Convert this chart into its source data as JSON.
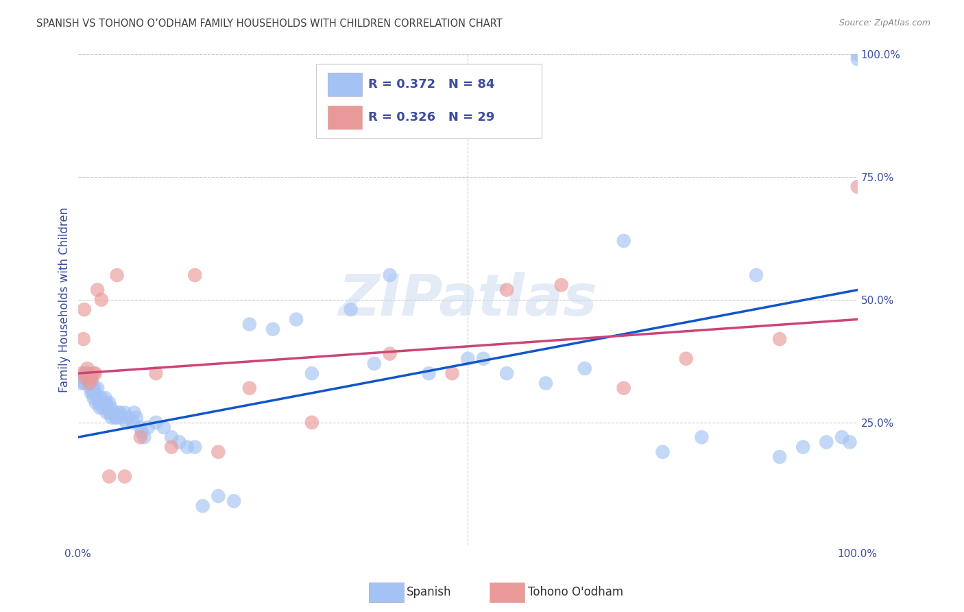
{
  "title": "SPANISH VS TOHONO O’ODHAM FAMILY HOUSEHOLDS WITH CHILDREN CORRELATION CHART",
  "source": "Source: ZipAtlas.com",
  "ylabel": "Family Households with Children",
  "watermark": "ZIPatlas",
  "xmin": 0.0,
  "xmax": 1.0,
  "ymin": 0.0,
  "ymax": 1.0,
  "spanish_R": 0.372,
  "spanish_N": 84,
  "tohono_R": 0.326,
  "tohono_N": 29,
  "spanish_color": "#a4c2f4",
  "tohono_color": "#ea9999",
  "line_spanish_color": "#1155cc",
  "line_tohono_color": "#cc4477",
  "background_color": "#ffffff",
  "grid_color": "#cccccc",
  "tick_label_color": "#3c4ca0",
  "title_color": "#404040",
  "source_color": "#888888",
  "legend_text_color": "#3c4ca0",
  "bottom_legend_text_color": "#333333",
  "spanish_x": [
    0.005,
    0.007,
    0.008,
    0.009,
    0.01,
    0.01,
    0.01,
    0.012,
    0.013,
    0.015,
    0.015,
    0.016,
    0.017,
    0.018,
    0.019,
    0.02,
    0.02,
    0.021,
    0.022,
    0.023,
    0.025,
    0.026,
    0.027,
    0.028,
    0.03,
    0.031,
    0.032,
    0.035,
    0.036,
    0.037,
    0.038,
    0.04,
    0.041,
    0.042,
    0.043,
    0.045,
    0.048,
    0.05,
    0.052,
    0.054,
    0.055,
    0.06,
    0.062,
    0.065,
    0.07,
    0.072,
    0.075,
    0.08,
    0.082,
    0.085,
    0.09,
    0.1,
    0.11,
    0.12,
    0.13,
    0.14,
    0.15,
    0.16,
    0.18,
    0.2,
    0.22,
    0.25,
    0.28,
    0.3,
    0.35,
    0.38,
    0.4,
    0.45,
    0.5,
    0.52,
    0.55,
    0.6,
    0.65,
    0.7,
    0.75,
    0.8,
    0.87,
    0.9,
    0.93,
    0.96,
    0.98,
    0.99,
    1.0,
    1.0
  ],
  "spanish_y": [
    0.33,
    0.34,
    0.33,
    0.35,
    0.34,
    0.35,
    0.33,
    0.35,
    0.34,
    0.33,
    0.34,
    0.32,
    0.31,
    0.33,
    0.32,
    0.31,
    0.3,
    0.32,
    0.31,
    0.29,
    0.32,
    0.3,
    0.29,
    0.28,
    0.3,
    0.29,
    0.28,
    0.3,
    0.29,
    0.27,
    0.28,
    0.29,
    0.27,
    0.28,
    0.26,
    0.27,
    0.26,
    0.26,
    0.27,
    0.27,
    0.26,
    0.27,
    0.25,
    0.26,
    0.25,
    0.27,
    0.26,
    0.24,
    0.23,
    0.22,
    0.24,
    0.25,
    0.24,
    0.22,
    0.21,
    0.2,
    0.2,
    0.08,
    0.1,
    0.09,
    0.45,
    0.44,
    0.46,
    0.35,
    0.48,
    0.37,
    0.55,
    0.35,
    0.38,
    0.38,
    0.35,
    0.33,
    0.36,
    0.62,
    0.19,
    0.22,
    0.55,
    0.18,
    0.2,
    0.21,
    0.22,
    0.21,
    0.99,
    1.0
  ],
  "tohono_x": [
    0.005,
    0.007,
    0.008,
    0.01,
    0.012,
    0.015,
    0.018,
    0.02,
    0.022,
    0.025,
    0.03,
    0.04,
    0.05,
    0.06,
    0.08,
    0.1,
    0.12,
    0.15,
    0.18,
    0.22,
    0.3,
    0.4,
    0.48,
    0.55,
    0.62,
    0.7,
    0.78,
    0.9,
    1.0
  ],
  "tohono_y": [
    0.35,
    0.42,
    0.48,
    0.34,
    0.36,
    0.33,
    0.34,
    0.35,
    0.35,
    0.52,
    0.5,
    0.14,
    0.55,
    0.14,
    0.22,
    0.35,
    0.2,
    0.55,
    0.19,
    0.32,
    0.25,
    0.39,
    0.35,
    0.52,
    0.53,
    0.32,
    0.38,
    0.42,
    0.73
  ]
}
